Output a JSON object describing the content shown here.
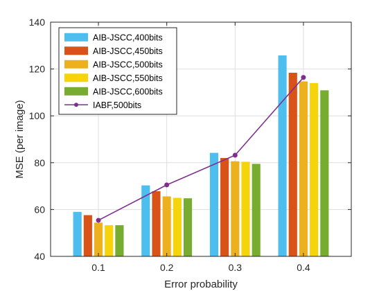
{
  "chart_data": {
    "type": "bar",
    "title": "",
    "xlabel": "Error probability",
    "ylabel": "MSE (per image)",
    "categories": [
      "0.1",
      "0.2",
      "0.3",
      "0.4"
    ],
    "ylim": [
      40,
      140
    ],
    "yticks": [
      "40",
      "60",
      "80",
      "100",
      "120",
      "140"
    ],
    "grid": true,
    "legend_position": "top-left",
    "series": [
      {
        "name": "AIB-JSCC,400bits",
        "kind": "bar",
        "color": "#4DBEEE",
        "values": [
          59,
          70.3,
          84.2,
          125.8
        ]
      },
      {
        "name": "AIB-JSCC,450bits",
        "kind": "bar",
        "color": "#D95319",
        "values": [
          57.6,
          67.8,
          82,
          118.4
        ]
      },
      {
        "name": "AIB-JSCC,500bits",
        "kind": "bar",
        "color": "#EDB120",
        "values": [
          54.4,
          65.6,
          80.6,
          114.7
        ]
      },
      {
        "name": "AIB-JSCC,550bits",
        "kind": "bar",
        "color": "#F5D40C",
        "values": [
          53.3,
          65,
          80.4,
          114
        ]
      },
      {
        "name": "AIB-JSCC,600bits",
        "kind": "bar",
        "color": "#77AC30",
        "values": [
          53.3,
          64.8,
          79.5,
          110.9
        ]
      },
      {
        "name": "IABF,500bits",
        "kind": "line",
        "color": "#7E2F8E",
        "values": [
          55.4,
          70.5,
          83.2,
          116.4
        ]
      }
    ]
  }
}
